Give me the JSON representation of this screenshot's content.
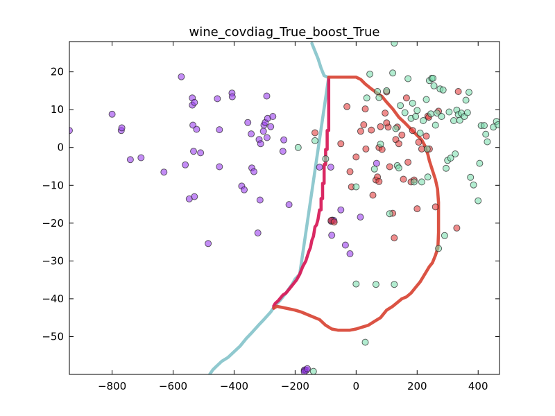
{
  "chart_data": {
    "type": "scatter",
    "title": "wine_covdiag_True_boost_True",
    "xlabel": "",
    "ylabel": "",
    "xlim": [
      -940,
      470
    ],
    "ylim": [
      -60,
      28
    ],
    "xticks": [
      -800,
      -600,
      -400,
      -200,
      0,
      200,
      400
    ],
    "yticks": [
      20,
      10,
      0,
      -10,
      -20,
      -30,
      -40,
      -50
    ],
    "xtick_labels": [
      "−800",
      "−600",
      "−400",
      "−200",
      "0",
      "200",
      "400"
    ],
    "ytick_labels": [
      "20",
      "10",
      "0",
      "−10",
      "−20",
      "−30",
      "−40",
      "−50"
    ],
    "grid": false,
    "colors": {
      "class_1": "#9b40ee",
      "class_2": "#e54040",
      "class_3": "#7fe0b0",
      "boundary_cyan": "#8ac6cc",
      "boundary_magenta": "#d81e5b",
      "boundary_red": "#d94a3a"
    },
    "series": [
      {
        "color_key": "class_1",
        "points": [
          [
            -940,
            4.5
          ],
          [
            -800,
            8.8
          ],
          [
            -770,
            4.5
          ],
          [
            -768,
            5.2
          ],
          [
            -740,
            -3.2
          ],
          [
            -705,
            -2.7
          ],
          [
            -630,
            -6.5
          ],
          [
            -573,
            18.7
          ],
          [
            -560,
            -4.6
          ],
          [
            -547,
            -13.6
          ],
          [
            -537,
            13.1
          ],
          [
            -537,
            11.2
          ],
          [
            -535,
            5.9
          ],
          [
            -533,
            -1.0
          ],
          [
            -530,
            -13.0
          ],
          [
            -530,
            11.9
          ],
          [
            -523,
            4.8
          ],
          [
            -510,
            -1.4
          ],
          [
            -455,
            12.9
          ],
          [
            -448,
            4.7
          ],
          [
            -448,
            -5.1
          ],
          [
            -407,
            14.4
          ],
          [
            -406,
            13.4
          ],
          [
            -375,
            -10.2
          ],
          [
            -367,
            -11.2
          ],
          [
            -355,
            6.6
          ],
          [
            -344,
            3.6
          ],
          [
            -342,
            -5.4
          ],
          [
            -335,
            -6.4
          ],
          [
            -322,
            -22.6
          ],
          [
            -318,
            2.1
          ],
          [
            -315,
            -13.9
          ],
          [
            -313,
            1.0
          ],
          [
            -304,
            4.3
          ],
          [
            -302,
            5.9
          ],
          [
            -298,
            6.6
          ],
          [
            -293,
            13.6
          ],
          [
            -292,
            2.6
          ],
          [
            -290,
            7.7
          ],
          [
            -280,
            5.5
          ],
          [
            -273,
            8.2
          ],
          [
            -240,
            -1.0
          ],
          [
            -237,
            2.0
          ],
          [
            -220,
            -15.1
          ],
          [
            -170,
            -58.9
          ],
          [
            -168,
            -58.8
          ],
          [
            -163,
            -58.9
          ],
          [
            -170,
            -59.3
          ],
          [
            -160,
            -58.5
          ],
          [
            -120,
            -5.2
          ],
          [
            -83,
            -5.2
          ],
          [
            -82,
            -19.5
          ],
          [
            -80,
            -23.2
          ],
          [
            -78,
            -19.2
          ],
          [
            -73,
            -19.3
          ],
          [
            -50,
            -16.5
          ],
          [
            -35,
            -25.8
          ],
          [
            -20,
            -28.1
          ],
          [
            14,
            -18.4
          ],
          [
            67,
            -4.2
          ],
          [
            -485,
            -25.4
          ]
        ]
      },
      {
        "color_key": "class_2",
        "points": [
          [
            -135,
            3.9
          ],
          [
            -82,
            -19.3
          ],
          [
            -72,
            -19.7
          ],
          [
            -50,
            1.0
          ],
          [
            -30,
            10.8
          ],
          [
            -20,
            -6.4
          ],
          [
            -15,
            -10.4
          ],
          [
            0,
            -2.5
          ],
          [
            15,
            4.3
          ],
          [
            25,
            6.0
          ],
          [
            30,
            10.2
          ],
          [
            32,
            -0.4
          ],
          [
            50,
            4.6
          ],
          [
            55,
            -12.6
          ],
          [
            65,
            -8.6
          ],
          [
            70,
            -7.8
          ],
          [
            75,
            0.0
          ],
          [
            80,
            5.5
          ],
          [
            85,
            -0.5
          ],
          [
            95,
            9.1
          ],
          [
            100,
            14.7
          ],
          [
            105,
            5.4
          ],
          [
            110,
            -5.1
          ],
          [
            120,
            -17.4
          ],
          [
            125,
            -23.9
          ],
          [
            130,
            2.1
          ],
          [
            135,
            5.4
          ],
          [
            140,
            1.0
          ],
          [
            150,
            3.3
          ],
          [
            155,
            -8.4
          ],
          [
            165,
            13.1
          ],
          [
            170,
            -3.9
          ],
          [
            180,
            -9.1
          ],
          [
            185,
            4.5
          ],
          [
            190,
            -8.6
          ],
          [
            200,
            -16.2
          ],
          [
            205,
            1.4
          ],
          [
            215,
            -0.4
          ],
          [
            230,
            3.0
          ],
          [
            235,
            8.3
          ],
          [
            238,
            8.0
          ],
          [
            240,
            -0.4
          ],
          [
            260,
            -15.7
          ],
          [
            270,
            9.6
          ],
          [
            330,
            -21.3
          ],
          [
            335,
            14.8
          ],
          [
            75,
            -9.0
          ],
          [
            100,
            6.5
          ]
        ]
      },
      {
        "color_key": "class_3",
        "points": [
          [
            -190,
            0.0
          ],
          [
            -140,
            -59.2
          ],
          [
            -135,
            1.8
          ],
          [
            -100,
            -3.0
          ],
          [
            0,
            -10.4
          ],
          [
            0,
            -36.1
          ],
          [
            30,
            -51.5
          ],
          [
            35,
            13.1
          ],
          [
            45,
            19.4
          ],
          [
            60,
            -5.7
          ],
          [
            65,
            -36.2
          ],
          [
            70,
            14.8
          ],
          [
            75,
            13.2
          ],
          [
            80,
            0.9
          ],
          [
            100,
            15.0
          ],
          [
            110,
            -17.5
          ],
          [
            120,
            19.7
          ],
          [
            125,
            27.6
          ],
          [
            125,
            -36.2
          ],
          [
            130,
            5.0
          ],
          [
            135,
            -4.8
          ],
          [
            140,
            -5.4
          ],
          [
            145,
            11.1
          ],
          [
            160,
            9.2
          ],
          [
            170,
            18.2
          ],
          [
            180,
            7.7
          ],
          [
            185,
            11.7
          ],
          [
            190,
            -9.1
          ],
          [
            195,
            8.2
          ],
          [
            200,
            9.8
          ],
          [
            210,
            3.8
          ],
          [
            215,
            -9.1
          ],
          [
            220,
            7.1
          ],
          [
            230,
            12.7
          ],
          [
            233,
            -0.4
          ],
          [
            235,
            -7.8
          ],
          [
            240,
            17.7
          ],
          [
            245,
            8.9
          ],
          [
            248,
            18.3
          ],
          [
            252,
            18.3
          ],
          [
            255,
            16.3
          ],
          [
            260,
            5.9
          ],
          [
            265,
            9.1
          ],
          [
            270,
            -26.7
          ],
          [
            275,
            15.5
          ],
          [
            280,
            8.2
          ],
          [
            285,
            15.2
          ],
          [
            290,
            -23.3
          ],
          [
            295,
            -5.5
          ],
          [
            300,
            -3.4
          ],
          [
            305,
            9.4
          ],
          [
            310,
            -2.8
          ],
          [
            320,
            7.1
          ],
          [
            325,
            -1.7
          ],
          [
            330,
            9.9
          ],
          [
            335,
            8.7
          ],
          [
            340,
            7.2
          ],
          [
            345,
            9.1
          ],
          [
            355,
            8.2
          ],
          [
            360,
            12.5
          ],
          [
            365,
            9.2
          ],
          [
            370,
            14.6
          ],
          [
            375,
            -7.9
          ],
          [
            385,
            -9.9
          ],
          [
            400,
            -14.1
          ],
          [
            405,
            -4.2
          ],
          [
            410,
            5.8
          ],
          [
            420,
            5.8
          ],
          [
            425,
            3.5
          ],
          [
            430,
            1.5
          ],
          [
            450,
            5.4
          ],
          [
            460,
            6.9
          ],
          [
            465,
            6.0
          ]
        ]
      }
    ],
    "boundaries": [
      {
        "color_key": "boundary_cyan",
        "points": [
          [
            -145,
            27.5
          ],
          [
            -135,
            25.5
          ],
          [
            -125,
            23.5
          ],
          [
            -115,
            21.0
          ],
          [
            -105,
            19.0
          ],
          [
            -93,
            18.6
          ],
          [
            -90,
            18.6
          ],
          [
            -185,
            -33.5
          ],
          [
            -200,
            -34.8
          ],
          [
            -210,
            -36.2
          ],
          [
            -230,
            -38.5
          ],
          [
            -250,
            -40.5
          ],
          [
            -265,
            -41.7
          ],
          [
            -280,
            -43.5
          ],
          [
            -300,
            -45.3
          ],
          [
            -320,
            -47.0
          ],
          [
            -340,
            -48.8
          ],
          [
            -360,
            -50.5
          ],
          [
            -380,
            -52.5
          ],
          [
            -400,
            -54.0
          ],
          [
            -420,
            -55.5
          ],
          [
            -440,
            -56.5
          ],
          [
            -460,
            -58.0
          ],
          [
            -470,
            -58.8
          ],
          [
            -480,
            -60.0
          ]
        ]
      },
      {
        "color_key": "boundary_magenta",
        "points": [
          [
            -90,
            18.6
          ],
          [
            -90,
            4.5
          ],
          [
            -95,
            4.5
          ],
          [
            -95,
            -0.5
          ],
          [
            -100,
            -0.5
          ],
          [
            -100,
            -4.5
          ],
          [
            -105,
            -4.5
          ],
          [
            -105,
            -9.5
          ],
          [
            -110,
            -9.5
          ],
          [
            -110,
            -13.5
          ],
          [
            -115,
            -13.5
          ],
          [
            -115,
            -16.5
          ],
          [
            -120,
            -16.5
          ],
          [
            -125,
            -19.0
          ],
          [
            -130,
            -20.5
          ],
          [
            -135,
            -21.0
          ],
          [
            -140,
            -23.5
          ],
          [
            -145,
            -24.5
          ],
          [
            -150,
            -26.5
          ],
          [
            -155,
            -27.5
          ],
          [
            -165,
            -30.0
          ],
          [
            -175,
            -31.5
          ],
          [
            -180,
            -32.5
          ],
          [
            -185,
            -33.5
          ],
          [
            -195,
            -35.0
          ],
          [
            -210,
            -36.5
          ],
          [
            -220,
            -37.5
          ],
          [
            -230,
            -38.5
          ],
          [
            -240,
            -39.0
          ],
          [
            -255,
            -40.5
          ],
          [
            -265,
            -41.2
          ],
          [
            -270,
            -41.9
          ],
          [
            -270,
            -42.5
          ]
        ]
      },
      {
        "color_key": "boundary_red",
        "points": [
          [
            -90,
            18.6
          ],
          [
            0,
            18.6
          ],
          [
            15,
            18.0
          ],
          [
            30,
            16.8
          ],
          [
            50,
            15.5
          ],
          [
            70,
            14.3
          ],
          [
            85,
            13.5
          ],
          [
            100,
            12.0
          ],
          [
            120,
            10.2
          ],
          [
            140,
            8.0
          ],
          [
            160,
            6.5
          ],
          [
            180,
            4.8
          ],
          [
            200,
            3.2
          ],
          [
            215,
            2.0
          ],
          [
            225,
            0.5
          ],
          [
            235,
            -1.8
          ],
          [
            240,
            -3.5
          ],
          [
            250,
            -6.0
          ],
          [
            260,
            -8.5
          ],
          [
            267,
            -11.0
          ],
          [
            270,
            -14.5
          ],
          [
            270,
            -18.5
          ],
          [
            270,
            -22.5
          ],
          [
            268,
            -26.5
          ],
          [
            260,
            -28.5
          ],
          [
            250,
            -30.5
          ],
          [
            240,
            -31.5
          ],
          [
            225,
            -33.5
          ],
          [
            210,
            -35.5
          ],
          [
            195,
            -37.0
          ],
          [
            180,
            -38.5
          ],
          [
            165,
            -39.5
          ],
          [
            150,
            -40.0
          ],
          [
            135,
            -41.0
          ],
          [
            120,
            -42.0
          ],
          [
            100,
            -43.0
          ],
          [
            80,
            -45.0
          ],
          [
            60,
            -46.0
          ],
          [
            40,
            -47.0
          ],
          [
            20,
            -47.5
          ],
          [
            0,
            -48.0
          ],
          [
            -20,
            -48.3
          ],
          [
            -40,
            -48.3
          ],
          [
            -60,
            -48.3
          ],
          [
            -80,
            -48.0
          ],
          [
            -100,
            -47.0
          ],
          [
            -120,
            -45.5
          ],
          [
            -150,
            -44.5
          ],
          [
            -180,
            -43.5
          ],
          [
            -200,
            -43.0
          ],
          [
            -230,
            -42.5
          ],
          [
            -260,
            -42.0
          ],
          [
            -270,
            -42.5
          ]
        ]
      }
    ]
  }
}
